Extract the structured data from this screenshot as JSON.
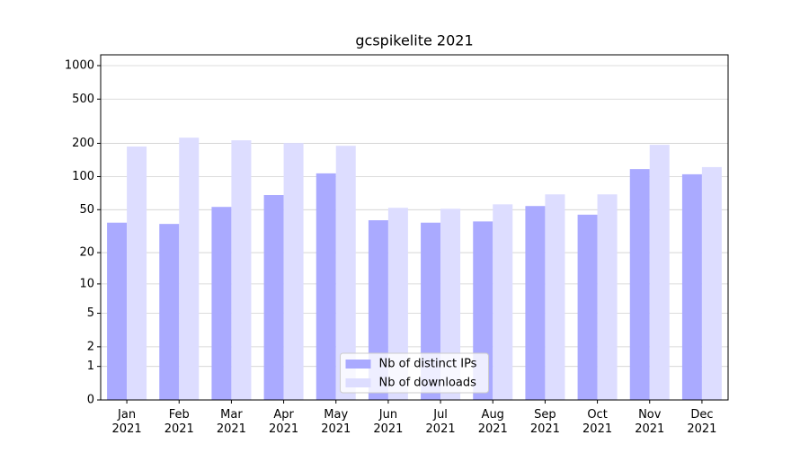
{
  "chart_data": {
    "type": "bar",
    "title": "gcspikelite 2021",
    "categories": [
      "Jan 2021",
      "Feb 2021",
      "Mar 2021",
      "Apr 2021",
      "May 2021",
      "Jun 2021",
      "Jul 2021",
      "Aug 2021",
      "Sep 2021",
      "Oct 2021",
      "Nov 2021",
      "Dec 2021"
    ],
    "series": [
      {
        "name": "Nb of distinct IPs",
        "color": "#aaaaff",
        "values": [
          38,
          37,
          53,
          68,
          107,
          40,
          38,
          39,
          54,
          45,
          117,
          105
        ]
      },
      {
        "name": "Nb of downloads",
        "color": "#ddddff",
        "values": [
          187,
          225,
          213,
          201,
          190,
          52,
          51,
          56,
          69,
          69,
          194,
          122
        ]
      }
    ],
    "yscale": "log1p",
    "ylim": [
      0,
      1250
    ],
    "yticks": [
      0,
      1,
      2,
      5,
      10,
      20,
      50,
      100,
      200,
      500,
      1000
    ],
    "grid": true,
    "legend": "lower center"
  }
}
